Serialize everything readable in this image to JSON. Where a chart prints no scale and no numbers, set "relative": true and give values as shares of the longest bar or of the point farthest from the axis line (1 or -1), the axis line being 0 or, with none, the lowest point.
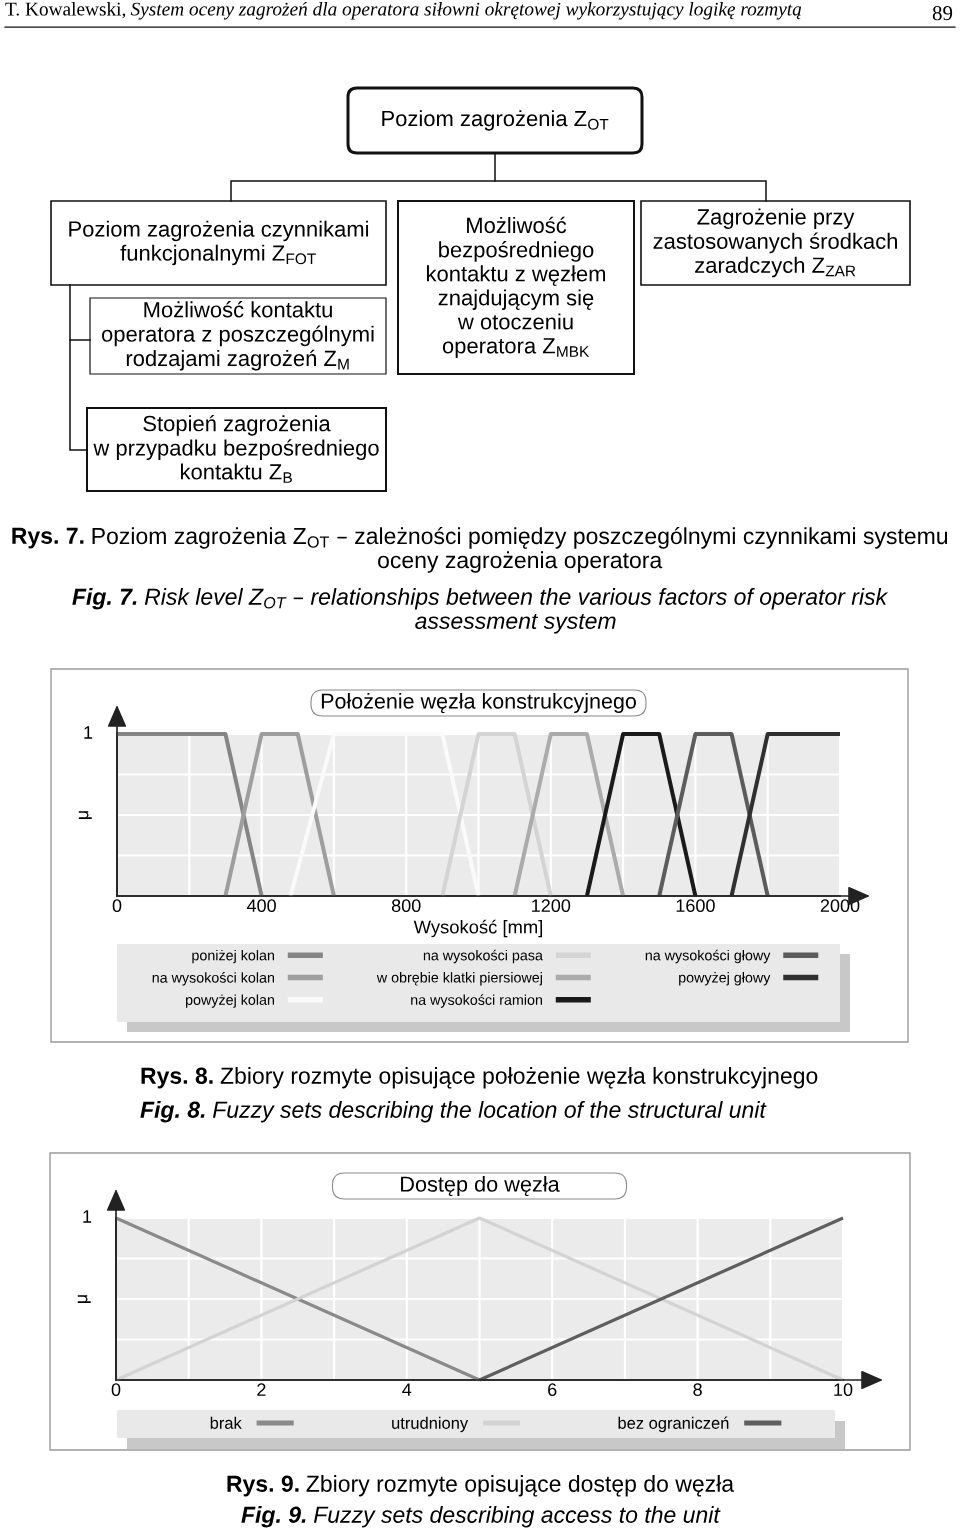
{
  "chart_data": [
    {
      "type": "other",
      "annotations": [
        "T. Kowalewski,",
        "System oceny zagrożeń dla operatora siłowni okrętowej wykorzystujący logikę rozmytą",
        "89",
        "Poziom zagrożenia Z$_{OT}$",
        "Poziom zagrożenia czynnikami\nfunkcjonalnymi Z$_{FOT}$",
        "Możliwość kontaktu\noperatora z poszczególnymi\nrodzajami zagrożeń Z$_{M}$",
        "Możliwość\nbezpośredniego\nkontaktu z węzłem\nznajdującym się\nw otoczeniu\noperatora Z$_{MBK}$",
        "Zagrożenie przy\nzastosowanych środkach\nzaradczych Z$_{ZAR}$",
        "Stopień zagrożenia\nw przypadku bezpośredniego\nkontaktu Z$_{B}$",
        "Rys. 7.",
        "Poziom zagrożenia Z$_{OT}$ – zależności pomiędzy poszczególnymi czynnikami systemu\noceny zagrożenia operatora",
        "Fig. 7.",
        "Risk level Z$_{OT}$ – relationships between the various factors of operator risk\nassessment system"
      ]
    },
    {
      "type": "line",
      "relative": true,
      "title": "Położenie węzła konstrukcyjnego",
      "xlabel": "Wysokość [mm]",
      "ylabel": "μ",
      "xlim": [
        0,
        2000
      ],
      "xticks": [
        0,
        {
          "value": 200,
          "label": null
        },
        400,
        {
          "value": 600,
          "label": null
        },
        800,
        {
          "value": 1000,
          "label": null
        },
        1200,
        {
          "value": 1400,
          "label": null
        },
        1600,
        {
          "value": 1800,
          "label": null
        },
        2000
      ],
      "grid": true,
      "legend": "bottom",
      "series": [
        {
          "name": "poniżej kolan",
          "color": "#858585",
          "x": [
            0,
            300,
            400
          ],
          "values": [
            1,
            1,
            0
          ]
        },
        {
          "name": "na wysokości kolan",
          "color": "#9e9e9e",
          "x": [
            300,
            400,
            500,
            600
          ],
          "values": [
            0,
            1,
            1,
            0
          ]
        },
        {
          "name": "powyżej kolan",
          "color": "#fafafa",
          "x": [
            480,
            600,
            900,
            1000
          ],
          "values": [
            0,
            1,
            1,
            0
          ]
        },
        {
          "name": "na wysokości pasa",
          "color": "#d4d4d4",
          "x": [
            900,
            1000,
            1100,
            1200
          ],
          "values": [
            0,
            1,
            1,
            0
          ]
        },
        {
          "name": "w obrębie klatki piersiowej",
          "color": "#ababab",
          "x": [
            1100,
            1200,
            1300,
            1400
          ],
          "values": [
            0,
            1,
            1,
            0
          ]
        },
        {
          "name": "na wysokości ramion",
          "color": "#1a1a1a",
          "x": [
            1300,
            1400,
            1500,
            1600
          ],
          "values": [
            0,
            1,
            1,
            0
          ]
        },
        {
          "name": "na wysokości głowy",
          "color": "#5c5c5c",
          "x": [
            1500,
            1600,
            1700,
            1800
          ],
          "values": [
            0,
            1,
            1,
            0
          ]
        },
        {
          "name": "powyżej głowy",
          "color": "#303030",
          "x": [
            1700,
            1800,
            2000
          ],
          "values": [
            0,
            1,
            1
          ]
        }
      ],
      "annotations": [
        "1",
        "Rys. 8.",
        "Zbiory rozmyte opisujące położenie węzła konstrukcyjnego",
        "Fig. 8.",
        "Fuzzy sets describing the location of the structural unit"
      ]
    },
    {
      "type": "line",
      "relative": true,
      "title": "Dostęp do węzła",
      "ylabel": "μ",
      "xlim": [
        0,
        10
      ],
      "xticks": [
        0,
        {
          "value": 1,
          "label": null
        },
        2,
        {
          "value": 3,
          "label": null
        },
        4,
        {
          "value": 5,
          "label": null
        },
        6,
        {
          "value": 7,
          "label": null
        },
        8,
        {
          "value": 9,
          "label": null
        },
        10
      ],
      "grid": true,
      "legend": "bottom",
      "series": [
        {
          "name": "brak",
          "color": "#8a8a8a",
          "x": [
            0,
            5
          ],
          "values": [
            1,
            0
          ]
        },
        {
          "name": "utrudniony",
          "color": "#d3d3d3",
          "x": [
            0,
            5,
            10
          ],
          "values": [
            0,
            1,
            0
          ]
        },
        {
          "name": "bez ograniczeń",
          "color": "#5e5e5e",
          "x": [
            5,
            10
          ],
          "values": [
            0,
            1
          ]
        }
      ],
      "annotations": [
        "1",
        "Rys. 9.",
        "Zbiory rozmyte opisujące dostęp do węzła",
        "Fig. 9.",
        "Fuzzy sets describing access to the unit"
      ]
    }
  ]
}
